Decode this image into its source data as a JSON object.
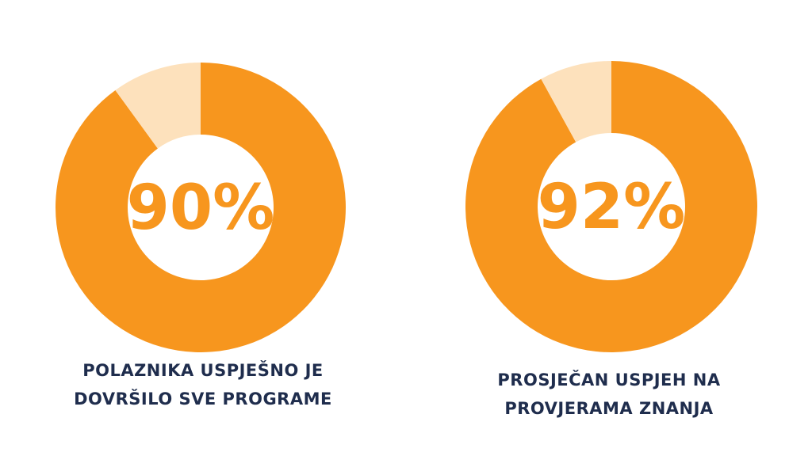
{
  "chart_data": [
    {
      "type": "pie",
      "variant": "donut",
      "values": [
        90,
        10
      ],
      "center_label": "90%",
      "caption_lines": [
        "POLAZNIKA USPJEŠNO JE",
        "DOVRŠILO SVE PROGRAME"
      ]
    },
    {
      "type": "pie",
      "variant": "donut",
      "values": [
        92,
        8
      ],
      "center_label": "92%",
      "caption_lines": [
        "PROSJEČAN USPJEH NA",
        "PROVJERAMA ZNANJA"
      ]
    }
  ],
  "colors": {
    "filled": "#f7961e",
    "remaining": "#fde1bc",
    "center_text": "#f7961e",
    "caption_text": "#1f2d4d"
  }
}
